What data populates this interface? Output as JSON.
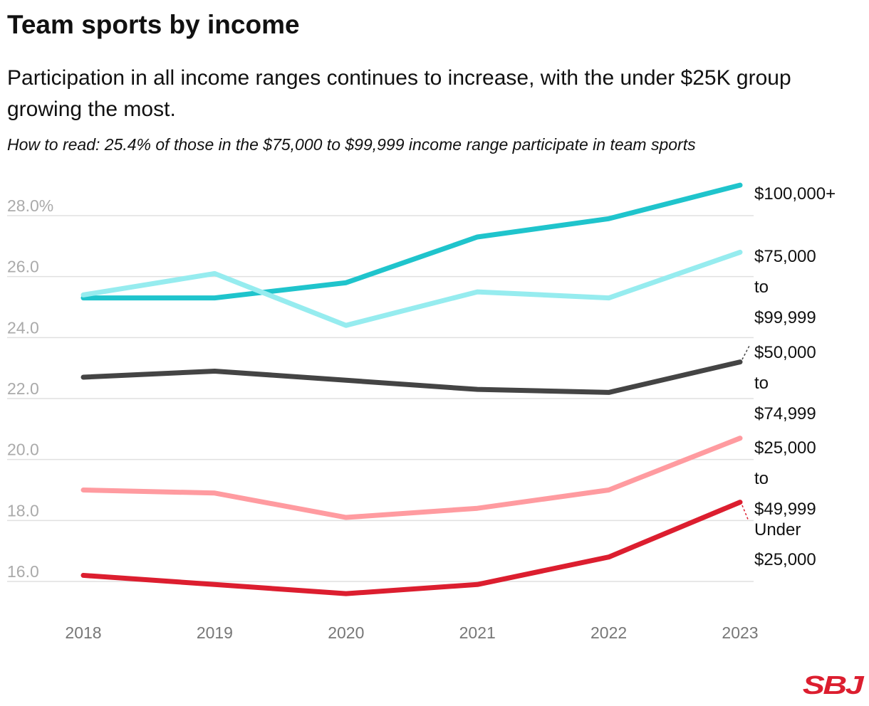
{
  "title": "Team sports by income",
  "subtitle": "Participation in all income ranges continues to increase, with the under $25K group growing the most.",
  "note": "How to read: 25.4% of those in the $75,000 to $99,999 income range participate in team sports",
  "logo": "SBJ",
  "chart_data": {
    "type": "line",
    "x": [
      2018,
      2019,
      2020,
      2021,
      2022,
      2023
    ],
    "ylim": [
      15,
      29.2
    ],
    "yticks": [
      16,
      18,
      20,
      22,
      24,
      26,
      28
    ],
    "ytick_labels": [
      "16.0",
      "18.0",
      "20.0",
      "22.0",
      "24.0",
      "26.0",
      "28.0%"
    ],
    "grid": "horizontal",
    "legend": "direct labels at right",
    "series": [
      {
        "name": "$100,000+",
        "label_lines": [
          "$100,000+"
        ],
        "color": "#1fc4cc",
        "values": [
          25.3,
          25.3,
          25.8,
          27.3,
          27.9,
          29.0
        ]
      },
      {
        "name": "$75,000 to $99,999",
        "label_lines": [
          "$75,000",
          "to",
          "$99,999"
        ],
        "color": "#96ecef",
        "values": [
          25.4,
          26.1,
          24.4,
          25.5,
          25.3,
          26.8
        ]
      },
      {
        "name": "$50,000 to $74,999",
        "label_lines": [
          "$50,000",
          "to",
          "$74,999"
        ],
        "color": "#444444",
        "values": [
          22.7,
          22.9,
          22.6,
          22.3,
          22.2,
          23.2
        ]
      },
      {
        "name": "$25,000 to $49,999",
        "label_lines": [
          "$25,000",
          "to",
          "$49,999"
        ],
        "color": "#ff9ba0",
        "values": [
          19.0,
          18.9,
          18.1,
          18.4,
          19.0,
          20.7
        ]
      },
      {
        "name": "Under $25,000",
        "label_lines": [
          "Under",
          "$25,000"
        ],
        "color": "#dc1e2f",
        "values": [
          16.2,
          15.9,
          15.6,
          15.9,
          16.8,
          18.6
        ]
      }
    ]
  }
}
